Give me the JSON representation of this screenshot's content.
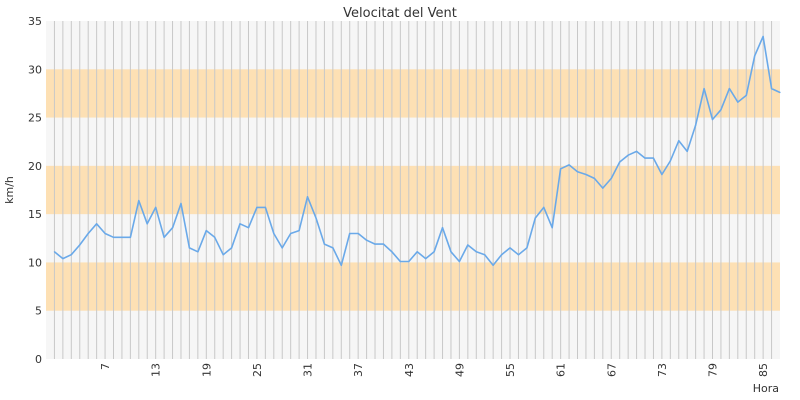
{
  "chart_data": {
    "type": "line",
    "title": "Velocitat del Vent",
    "xlabel": "Hora",
    "ylabel": "km/h",
    "xlim": [
      0,
      87
    ],
    "ylim": [
      0,
      35
    ],
    "x_ticks": [
      7,
      13,
      19,
      25,
      31,
      37,
      43,
      49,
      55,
      61,
      67,
      73,
      79,
      85
    ],
    "y_ticks": [
      0,
      5,
      10,
      15,
      20,
      25,
      30,
      35
    ],
    "grid": "vertical",
    "bands": [
      [
        5,
        10
      ],
      [
        15,
        20
      ],
      [
        25,
        30
      ]
    ],
    "colors": {
      "line": "#6aa9e9",
      "band": "#fde0b4",
      "plot_bg": "#f6f6f6",
      "grid": "#c8c8c8"
    },
    "series": [
      {
        "x": [
          1,
          2,
          3,
          4,
          5,
          6,
          7,
          8,
          9,
          10,
          11,
          12,
          13,
          14,
          15,
          16,
          17,
          18,
          19,
          20,
          21,
          22,
          23,
          24,
          25,
          26,
          27,
          28,
          29,
          30,
          31,
          32,
          33,
          34,
          35,
          36,
          37,
          38,
          39,
          40,
          41,
          42,
          43,
          44,
          45,
          46,
          47,
          48,
          49,
          50,
          51,
          52,
          53,
          54,
          55,
          56,
          57,
          58,
          59,
          60,
          61,
          62,
          63,
          64,
          65,
          66,
          67,
          68,
          69,
          70,
          71,
          72,
          73,
          74,
          75,
          76,
          77,
          78,
          79,
          80,
          81,
          82,
          83,
          84,
          85,
          86,
          87
        ],
        "values": [
          11.1,
          10.4,
          10.8,
          11.8,
          13.0,
          14.0,
          13.0,
          12.6,
          12.6,
          12.6,
          16.4,
          14.0,
          15.7,
          12.6,
          13.6,
          16.1,
          11.5,
          11.1,
          13.3,
          12.6,
          10.8,
          11.5,
          14.0,
          13.6,
          15.7,
          15.7,
          13.0,
          11.5,
          13.0,
          13.3,
          16.8,
          14.6,
          11.9,
          11.5,
          9.7,
          13.0,
          13.0,
          12.3,
          11.9,
          11.9,
          11.1,
          10.1,
          10.1,
          11.1,
          10.4,
          11.1,
          13.6,
          11.1,
          10.1,
          11.8,
          11.1,
          10.8,
          9.7,
          10.8,
          11.5,
          10.8,
          11.5,
          14.6,
          15.7,
          13.6,
          19.7,
          20.1,
          19.4,
          19.1,
          18.7,
          17.7,
          18.7,
          20.4,
          21.1,
          21.5,
          20.8,
          20.8,
          19.1,
          20.5,
          22.6,
          21.5,
          24.2,
          28.0,
          24.8,
          25.8,
          28.0,
          26.6,
          27.3,
          31.4,
          33.4,
          28.0,
          27.6
        ]
      }
    ]
  }
}
